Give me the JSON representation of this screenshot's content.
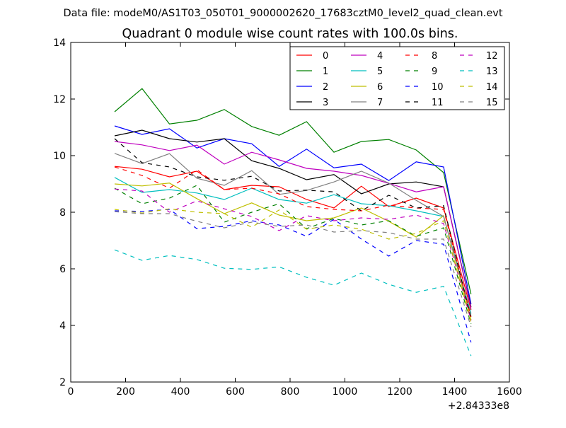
{
  "suptitle": "Data file: modeM0/AS1T03_050T01_9000002620_17683cztM0_level2_quad_clean.evt",
  "chart_data": {
    "type": "line",
    "title": "Quadrant 0 module wise count rates with 100.0s bins.",
    "xlabel": "",
    "ylabel": "",
    "x_offset_label": "+2.84333e8",
    "xlim": [
      0,
      1600
    ],
    "ylim": [
      2,
      14
    ],
    "x_ticks": [
      0,
      200,
      400,
      600,
      800,
      1000,
      1200,
      1400,
      1600
    ],
    "y_ticks": [
      2,
      4,
      6,
      8,
      10,
      12,
      14
    ],
    "grid": false,
    "legend": {
      "placement": "top-right",
      "columns": 4
    },
    "x": [
      160,
      260,
      360,
      460,
      560,
      660,
      760,
      860,
      960,
      1060,
      1160,
      1260,
      1360,
      1460
    ],
    "series": [
      {
        "name": "0",
        "color": "#ff0000",
        "dash": "solid",
        "values": [
          9.62,
          9.52,
          9.25,
          9.45,
          8.8,
          8.95,
          8.9,
          8.45,
          8.15,
          8.92,
          8.2,
          8.5,
          8.15,
          4.55
        ]
      },
      {
        "name": "1",
        "color": "#008000",
        "dash": "solid",
        "values": [
          11.55,
          12.37,
          11.12,
          11.25,
          11.63,
          11.03,
          10.72,
          11.2,
          10.12,
          10.5,
          10.57,
          10.2,
          9.4,
          5.1
        ]
      },
      {
        "name": "2",
        "color": "#0000ff",
        "dash": "solid",
        "values": [
          11.05,
          10.75,
          10.95,
          10.27,
          10.6,
          10.42,
          9.62,
          10.23,
          9.57,
          9.7,
          9.12,
          9.78,
          9.6,
          4.75
        ]
      },
      {
        "name": "3",
        "color": "#000000",
        "dash": "solid",
        "values": [
          10.7,
          10.9,
          10.6,
          10.48,
          10.6,
          9.82,
          9.55,
          9.15,
          9.33,
          8.65,
          9.0,
          9.07,
          8.9,
          4.65
        ]
      },
      {
        "name": "4",
        "color": "#bf00bf",
        "dash": "solid",
        "values": [
          10.5,
          10.38,
          10.18,
          10.37,
          9.7,
          10.12,
          9.85,
          9.55,
          9.45,
          9.3,
          9.02,
          8.72,
          8.9,
          4.6
        ]
      },
      {
        "name": "5",
        "color": "#00bfbf",
        "dash": "solid",
        "values": [
          9.23,
          8.7,
          8.8,
          8.68,
          8.45,
          8.85,
          8.45,
          8.32,
          8.62,
          8.3,
          8.23,
          8.05,
          7.85,
          4.42
        ]
      },
      {
        "name": "6",
        "color": "#bfbf00",
        "dash": "solid",
        "values": [
          9.0,
          8.93,
          9.03,
          8.48,
          7.95,
          8.33,
          7.9,
          7.7,
          7.8,
          8.15,
          7.68,
          7.12,
          7.88,
          4.2
        ]
      },
      {
        "name": "7",
        "color": "#808080",
        "dash": "solid",
        "values": [
          10.08,
          9.72,
          10.07,
          9.2,
          8.95,
          9.47,
          8.63,
          8.77,
          9.07,
          9.45,
          9.03,
          8.42,
          7.85,
          4.35
        ]
      },
      {
        "name": "8",
        "color": "#ff0000",
        "dash": "dashed",
        "values": [
          9.6,
          9.3,
          8.85,
          9.5,
          8.8,
          8.85,
          8.65,
          8.2,
          8.1,
          8.05,
          8.25,
          8.15,
          8.1,
          4.3
        ]
      },
      {
        "name": "9",
        "color": "#008000",
        "dash": "dashed",
        "values": [
          8.85,
          8.3,
          8.5,
          8.95,
          7.65,
          8.0,
          8.3,
          7.42,
          7.78,
          7.55,
          7.7,
          7.15,
          7.45,
          4.05
        ]
      },
      {
        "name": "10",
        "color": "#0000ff",
        "dash": "dashed",
        "values": [
          8.05,
          8.03,
          8.1,
          7.42,
          7.5,
          7.7,
          7.55,
          7.15,
          7.75,
          7.05,
          6.45,
          7.0,
          6.87,
          3.4
        ]
      },
      {
        "name": "11",
        "color": "#000000",
        "dash": "dashed",
        "values": [
          10.6,
          9.75,
          9.6,
          9.25,
          9.13,
          9.27,
          8.75,
          8.78,
          8.72,
          8.05,
          8.6,
          8.15,
          8.23,
          4.22
        ]
      },
      {
        "name": "12",
        "color": "#bf00bf",
        "dash": "dashed",
        "values": [
          8.82,
          8.75,
          8.0,
          8.4,
          8.12,
          7.85,
          7.35,
          7.88,
          7.7,
          7.8,
          7.75,
          7.9,
          7.6,
          4.18
        ]
      },
      {
        "name": "13",
        "color": "#00bfbf",
        "dash": "dashed",
        "values": [
          6.67,
          6.3,
          6.47,
          6.33,
          6.02,
          5.98,
          6.07,
          5.7,
          5.42,
          5.85,
          5.45,
          5.17,
          5.38,
          2.92
        ]
      },
      {
        "name": "14",
        "color": "#bfbf00",
        "dash": "dashed",
        "values": [
          8.1,
          7.97,
          8.12,
          8.0,
          7.95,
          7.47,
          8.08,
          7.4,
          7.55,
          7.4,
          7.05,
          7.25,
          7.7,
          4.08
        ]
      },
      {
        "name": "15",
        "color": "#808080",
        "dash": "dashed",
        "values": [
          8.02,
          7.95,
          7.95,
          7.68,
          7.45,
          7.65,
          7.5,
          7.55,
          7.3,
          7.35,
          7.28,
          7.05,
          7.05,
          3.95
        ]
      }
    ]
  }
}
